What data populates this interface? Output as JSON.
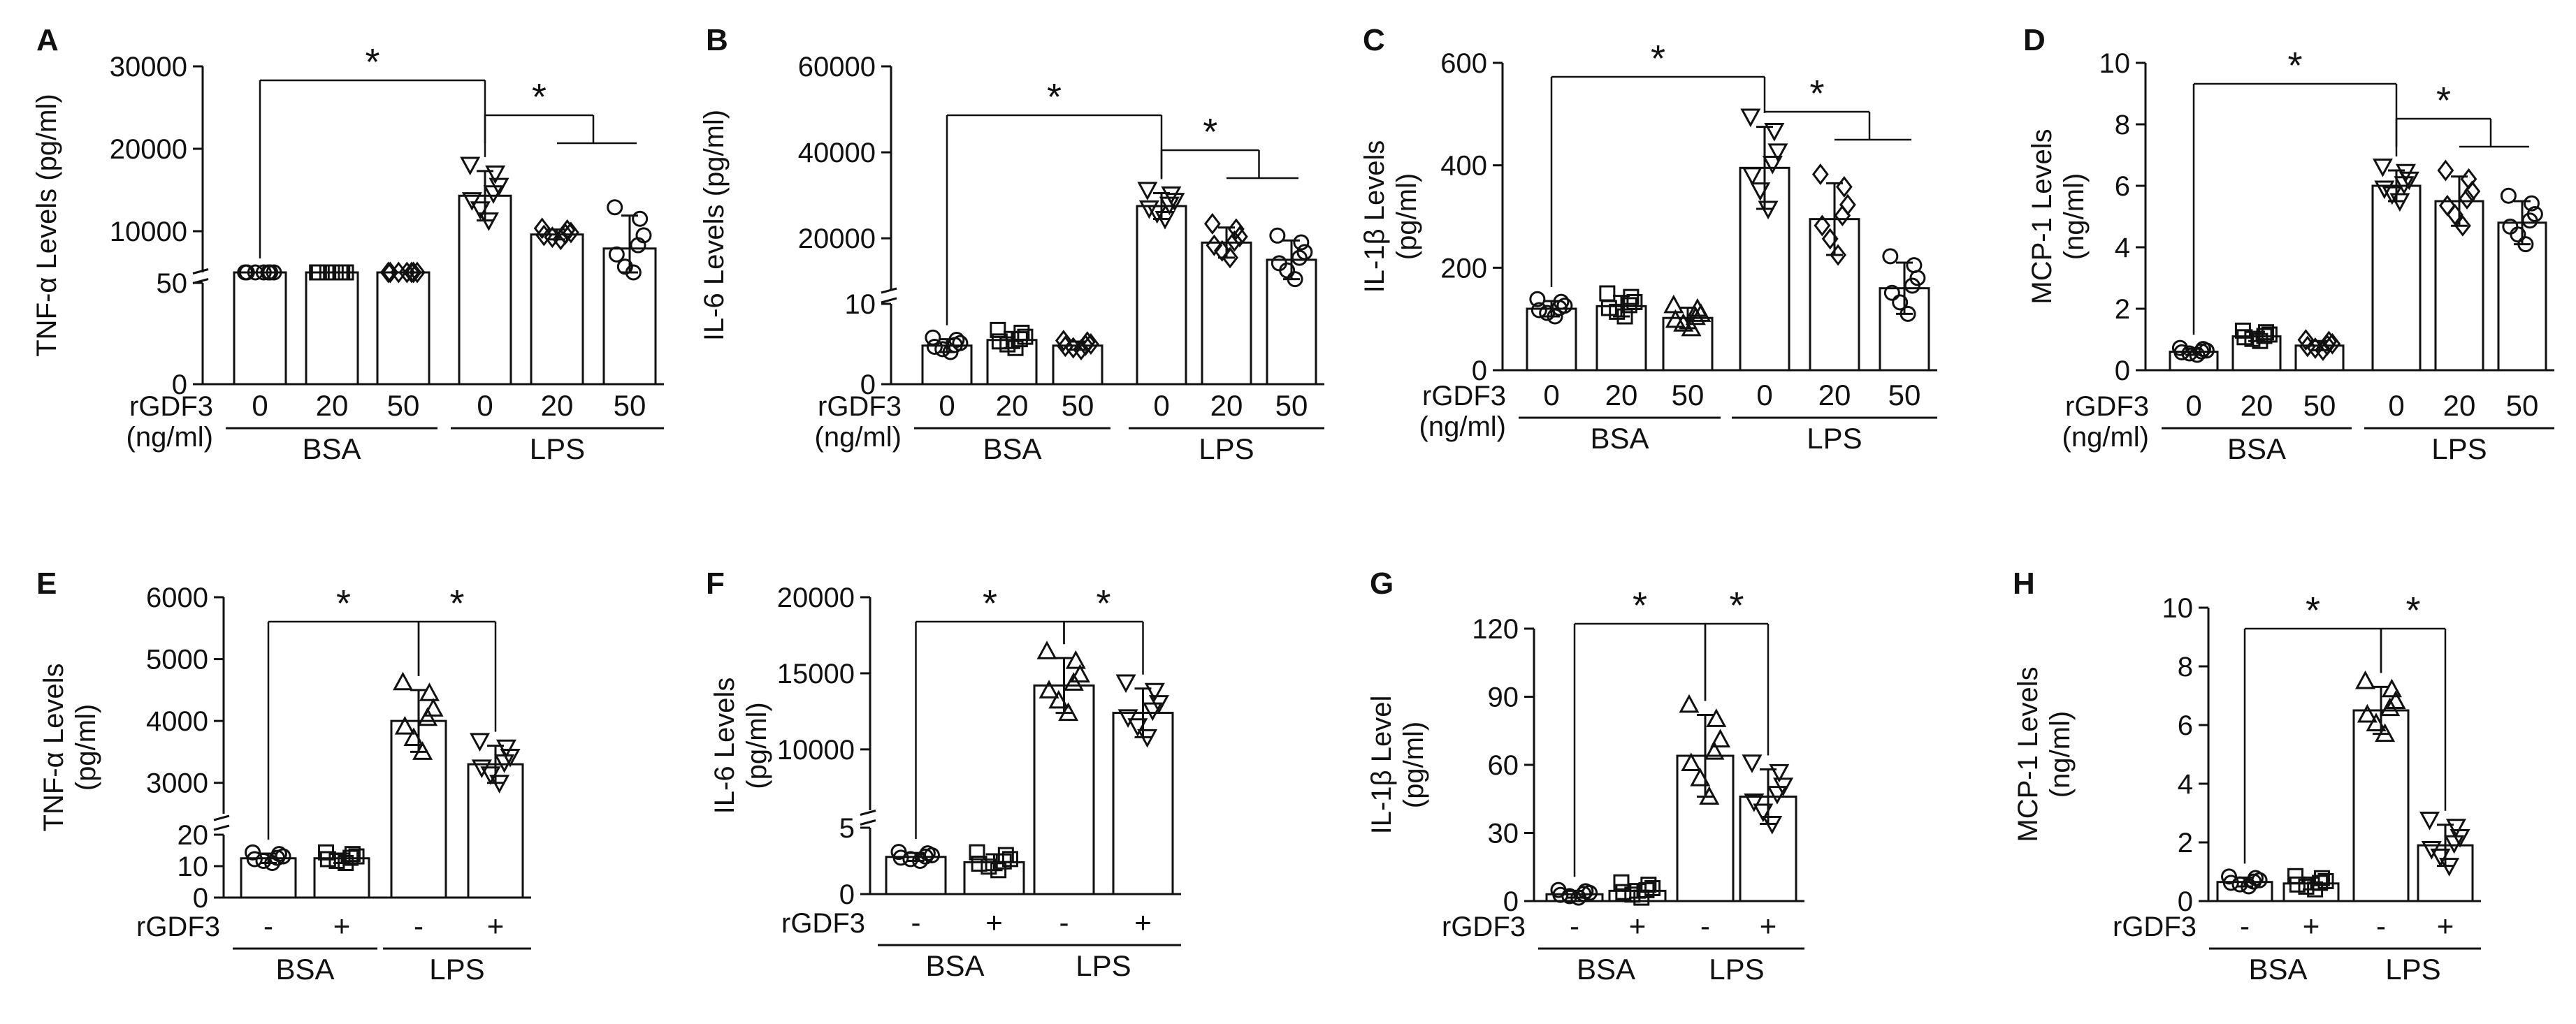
{
  "figure": {
    "panel_count": 8
  },
  "colors": {
    "ink": "#111111",
    "bar_fill": "#ffffff",
    "background": "#ffffff"
  },
  "chart_data": [
    {
      "panel": "A",
      "type": "bar",
      "ylabel": "TNF-α Levels (pg/ml)",
      "treatment_label": "rGDF3",
      "unit_label": "(ng/ml)",
      "categories": [
        "0",
        "20",
        "50",
        "0",
        "20",
        "50"
      ],
      "groups": [
        {
          "name": "BSA",
          "span": [
            0,
            2
          ]
        },
        {
          "name": "LPS",
          "span": [
            3,
            5
          ]
        }
      ],
      "values": [
        600,
        600,
        500,
        14300,
        9600,
        7900
      ],
      "errors": [
        300,
        300,
        200,
        3000,
        600,
        4000
      ],
      "markers": [
        "circle",
        "square",
        "diamond",
        "triangle-down",
        "diamond",
        "circle"
      ],
      "segments": [
        {
          "range": [
            0,
            50
          ],
          "ticks": [
            "0",
            "50"
          ],
          "tick_values": [
            0,
            50
          ]
        },
        {
          "range": [
            5000,
            30000
          ],
          "ticks": [
            "10000",
            "20000",
            "30000"
          ],
          "tick_values": [
            10000,
            20000,
            30000
          ]
        }
      ],
      "significance": [
        {
          "from": 0,
          "to": 3,
          "label": "*",
          "level": 0
        },
        {
          "from": 3,
          "to": [
            4,
            5
          ],
          "label": "*",
          "level": 1
        }
      ]
    },
    {
      "panel": "B",
      "type": "bar",
      "ylabel": "IL-6 Levels (pg/ml)",
      "treatment_label": "rGDF3",
      "unit_label": "(ng/ml)",
      "categories": [
        "0",
        "20",
        "50",
        "0",
        "20",
        "50"
      ],
      "groups": [
        {
          "name": "BSA",
          "span": [
            0,
            2
          ]
        },
        {
          "name": "LPS",
          "span": [
            3,
            5
          ]
        }
      ],
      "values": [
        4.8,
        5.5,
        4.8,
        27500,
        19000,
        15000
      ],
      "errors": [
        0.8,
        1.0,
        0.5,
        3000,
        3500,
        4500
      ],
      "markers": [
        "circle",
        "square",
        "diamond",
        "triangle-down",
        "diamond",
        "circle"
      ],
      "segments": [
        {
          "range": [
            0,
            10
          ],
          "ticks": [
            "0",
            "10"
          ],
          "tick_values": [
            0,
            10
          ]
        },
        {
          "range": [
            8000,
            60000
          ],
          "ticks": [
            "20000",
            "40000",
            "60000"
          ],
          "tick_values": [
            20000,
            40000,
            60000
          ]
        }
      ],
      "significance": [
        {
          "from": 0,
          "to": 3,
          "label": "*",
          "level": 0
        },
        {
          "from": 3,
          "to": [
            4,
            5
          ],
          "label": "*",
          "level": 1
        }
      ]
    },
    {
      "panel": "C",
      "type": "bar",
      "ylabel": "IL-1β Levels",
      "ylabel2": "(pg/ml)",
      "treatment_label": "rGDF3",
      "unit_label": "(ng/ml)",
      "categories": [
        "0",
        "20",
        "50",
        "0",
        "20",
        "50"
      ],
      "groups": [
        {
          "name": "BSA",
          "span": [
            0,
            2
          ]
        },
        {
          "name": "LPS",
          "span": [
            3,
            5
          ]
        }
      ],
      "values": [
        120,
        125,
        102,
        395,
        295,
        160
      ],
      "errors": [
        15,
        20,
        20,
        80,
        70,
        50
      ],
      "markers": [
        "circle",
        "square",
        "triangle",
        "triangle-down",
        "diamond",
        "circle"
      ],
      "segments": [
        {
          "range": [
            0,
            600
          ],
          "ticks": [
            "0",
            "200",
            "400",
            "600"
          ],
          "tick_values": [
            0,
            200,
            400,
            600
          ]
        }
      ],
      "significance": [
        {
          "from": 0,
          "to": 3,
          "label": "*",
          "level": 0
        },
        {
          "from": 3,
          "to": [
            4,
            5
          ],
          "label": "*",
          "level": 1
        }
      ]
    },
    {
      "panel": "D",
      "type": "bar",
      "ylabel": "MCP-1 Levels",
      "ylabel2": "(ng/ml)",
      "treatment_label": "rGDF3",
      "unit_label": "(ng/ml)",
      "categories": [
        "0",
        "20",
        "50",
        "0",
        "20",
        "50"
      ],
      "groups": [
        {
          "name": "BSA",
          "span": [
            0,
            2
          ]
        },
        {
          "name": "LPS",
          "span": [
            3,
            5
          ]
        }
      ],
      "values": [
        0.6,
        1.1,
        0.8,
        6.0,
        5.5,
        4.8
      ],
      "errors": [
        0.1,
        0.15,
        0.15,
        0.5,
        0.8,
        0.7
      ],
      "markers": [
        "circle",
        "square",
        "diamond",
        "triangle-down",
        "diamond",
        "circle"
      ],
      "segments": [
        {
          "range": [
            0,
            10
          ],
          "ticks": [
            "0",
            "2",
            "4",
            "6",
            "8",
            "10"
          ],
          "tick_values": [
            0,
            2,
            4,
            6,
            8,
            10
          ]
        }
      ],
      "significance": [
        {
          "from": 0,
          "to": 3,
          "label": "*",
          "level": 0
        },
        {
          "from": 3,
          "to": [
            4,
            5
          ],
          "label": "*",
          "level": 1
        }
      ]
    },
    {
      "panel": "E",
      "type": "bar",
      "ylabel": "TNF-α Levels",
      "ylabel2": "(pg/ml)",
      "treatment_label": "rGDF3",
      "categories": [
        "-",
        "+",
        "-",
        "+"
      ],
      "groups": [
        {
          "name": "BSA",
          "span": [
            0,
            1
          ]
        },
        {
          "name": "LPS",
          "span": [
            2,
            3
          ]
        }
      ],
      "values": [
        12.5,
        12.5,
        4000,
        3300
      ],
      "errors": [
        1.5,
        1.5,
        500,
        300
      ],
      "markers": [
        "circle",
        "square",
        "triangle",
        "triangle-down"
      ],
      "segments": [
        {
          "range": [
            0,
            20
          ],
          "ticks": [
            "0",
            "10",
            "20"
          ],
          "tick_values": [
            0,
            10,
            20
          ]
        },
        {
          "range": [
            2500,
            6000
          ],
          "ticks": [
            "3000",
            "4000",
            "5000",
            "6000"
          ],
          "tick_values": [
            3000,
            4000,
            5000,
            6000
          ]
        }
      ],
      "significance": [
        {
          "from": 0,
          "to": 2,
          "label": "*",
          "level": 0
        },
        {
          "from": 2,
          "to": 3,
          "label": "*",
          "level": 0
        }
      ]
    },
    {
      "panel": "F",
      "type": "bar",
      "ylabel": "IL-6 Levels",
      "ylabel2": "(pg/ml)",
      "treatment_label": "rGDF3",
      "categories": [
        "-",
        "+",
        "-",
        "+"
      ],
      "groups": [
        {
          "name": "BSA",
          "span": [
            0,
            1
          ]
        },
        {
          "name": "LPS",
          "span": [
            2,
            3
          ]
        }
      ],
      "values": [
        2.8,
        2.4,
        14200,
        12400
      ],
      "errors": [
        0.3,
        0.6,
        1800,
        1600
      ],
      "markers": [
        "circle",
        "square",
        "triangle",
        "triangle-down"
      ],
      "segments": [
        {
          "range": [
            0,
            5
          ],
          "ticks": [
            "0",
            "5"
          ],
          "tick_values": [
            0,
            5
          ]
        },
        {
          "range": [
            6000,
            20000
          ],
          "ticks": [
            "10000",
            "15000",
            "20000"
          ],
          "tick_values": [
            10000,
            15000,
            20000
          ]
        }
      ],
      "significance": [
        {
          "from": 0,
          "to": 2,
          "label": "*",
          "level": 0
        },
        {
          "from": 2,
          "to": 3,
          "label": "*",
          "level": 0
        }
      ]
    },
    {
      "panel": "G",
      "type": "bar",
      "ylabel": "IL-1β Level",
      "ylabel2": "(pg/ml)",
      "treatment_label": "rGDF3",
      "categories": [
        "-",
        "+",
        "-",
        "+"
      ],
      "groups": [
        {
          "name": "BSA",
          "span": [
            0,
            1
          ]
        },
        {
          "name": "LPS",
          "span": [
            2,
            3
          ]
        }
      ],
      "values": [
        3,
        4.5,
        64,
        46
      ],
      "errors": [
        1.5,
        3,
        18,
        12
      ],
      "markers": [
        "circle",
        "square",
        "triangle",
        "triangle-down"
      ],
      "segments": [
        {
          "range": [
            0,
            120
          ],
          "ticks": [
            "0",
            "30",
            "60",
            "90",
            "120"
          ],
          "tick_values": [
            0,
            30,
            60,
            90,
            120
          ]
        }
      ],
      "significance": [
        {
          "from": 0,
          "to": 2,
          "label": "*",
          "level": 0
        },
        {
          "from": 2,
          "to": 3,
          "label": "*",
          "level": 0
        }
      ]
    },
    {
      "panel": "H",
      "type": "bar",
      "ylabel": "MCP-1 Levels",
      "ylabel2": "(ng/ml)",
      "treatment_label": "rGDF3",
      "categories": [
        "-",
        "+",
        "-",
        "+"
      ],
      "groups": [
        {
          "name": "BSA",
          "span": [
            0,
            1
          ]
        },
        {
          "name": "LPS",
          "span": [
            2,
            3
          ]
        }
      ],
      "values": [
        0.65,
        0.6,
        6.5,
        1.9
      ],
      "errors": [
        0.15,
        0.2,
        0.8,
        0.7
      ],
      "markers": [
        "circle",
        "square",
        "triangle",
        "triangle-down"
      ],
      "segments": [
        {
          "range": [
            0,
            10
          ],
          "ticks": [
            "0",
            "2",
            "4",
            "6",
            "8",
            "10"
          ],
          "tick_values": [
            0,
            2,
            4,
            6,
            8,
            10
          ]
        }
      ],
      "significance": [
        {
          "from": 0,
          "to": 2,
          "label": "*",
          "level": 0
        },
        {
          "from": 2,
          "to": 3,
          "label": "*",
          "level": 0
        }
      ]
    }
  ]
}
